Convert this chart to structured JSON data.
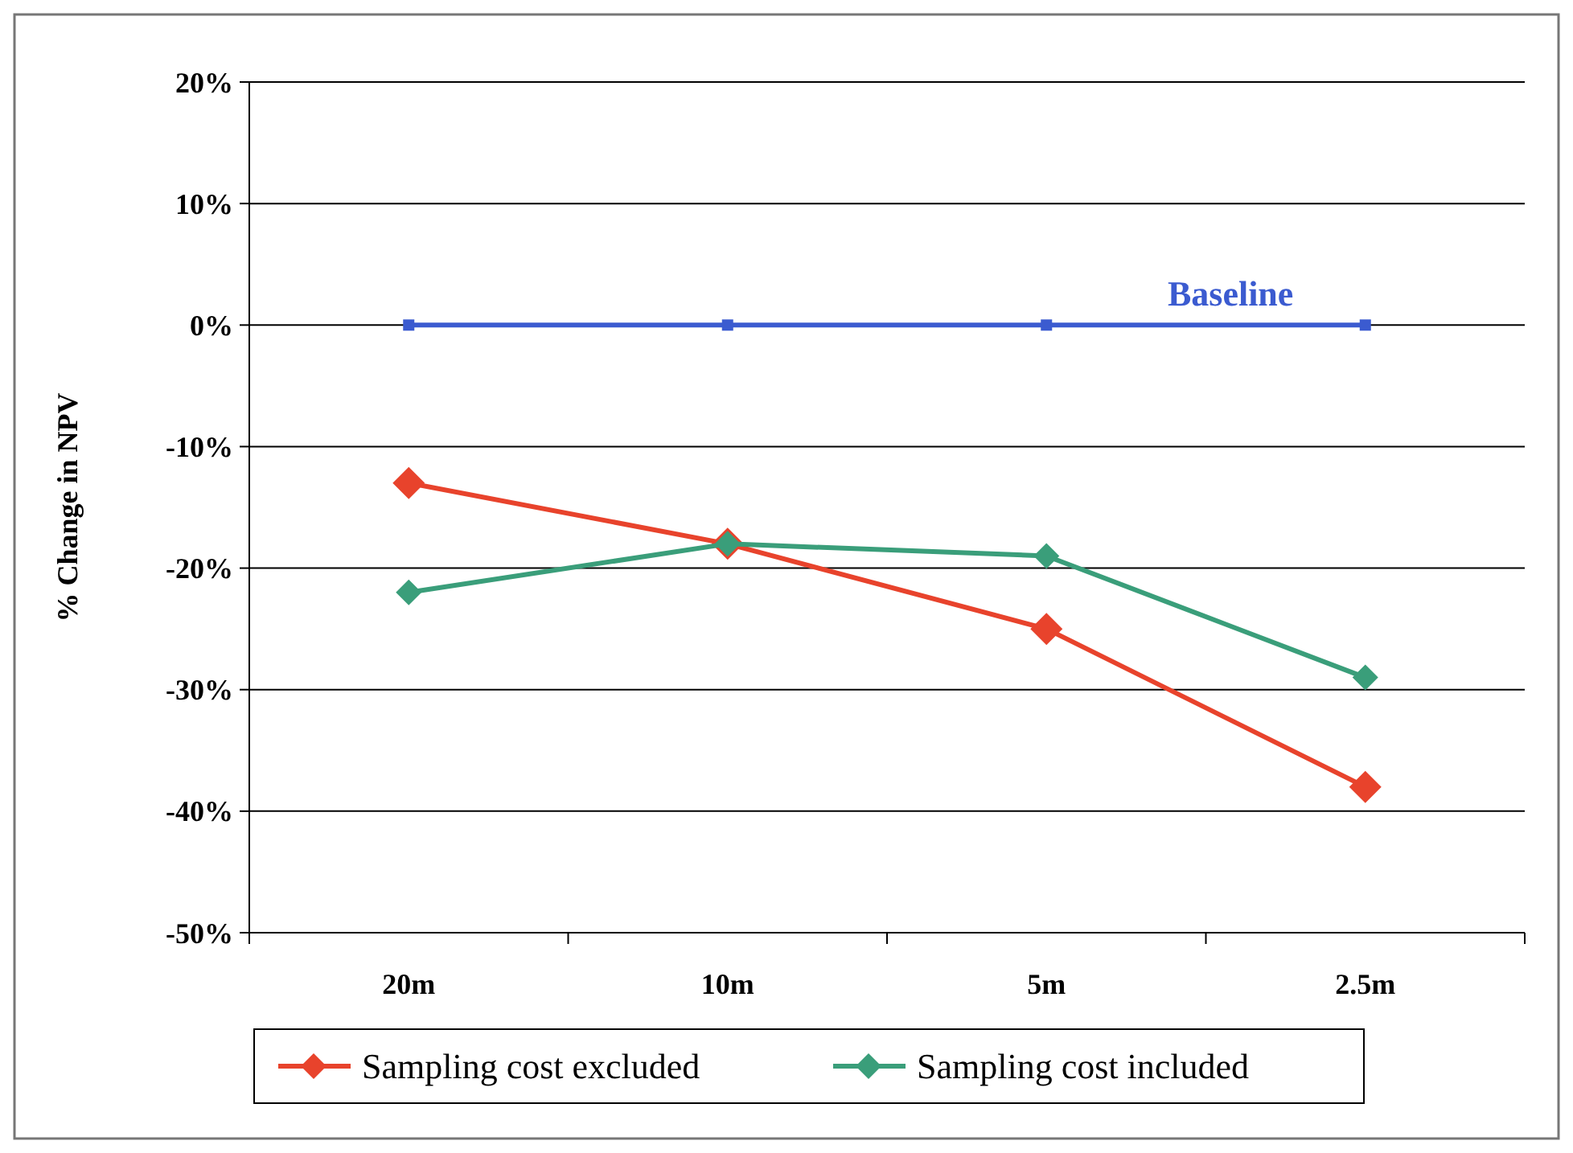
{
  "chart_data": {
    "type": "line",
    "ylabel": "% Change in NPV",
    "categories": [
      "20m",
      "10m",
      "5m",
      "2.5m"
    ],
    "series": [
      {
        "color": "#3b5bd0",
        "values": [
          0,
          0,
          0,
          0
        ],
        "marker": "square"
      },
      {
        "name": "Sampling cost excluded",
        "color": "#e8432c",
        "values": [
          -13,
          -18,
          -25,
          -38
        ],
        "marker": "diamond"
      },
      {
        "name": "Sampling cost included",
        "color": "#3a9e7a",
        "values": [
          -22,
          -18,
          -19,
          -29
        ],
        "marker": "diamond"
      }
    ],
    "annotations": [
      {
        "text": "Baseline",
        "y": 0
      }
    ],
    "ylim": [
      -50,
      20
    ],
    "yticks": [
      {
        "value": -50,
        "label": "-50%"
      },
      {
        "value": -40,
        "label": "-40%"
      },
      {
        "value": -30,
        "label": "-30%"
      },
      {
        "value": -20,
        "label": "-20%"
      },
      {
        "value": -10,
        "label": "-10%"
      },
      {
        "value": 0,
        "label": "0%"
      },
      {
        "value": 10,
        "label": "10%"
      },
      {
        "value": 20,
        "label": "20%"
      }
    ],
    "grid": "y",
    "legend": "bottom"
  }
}
